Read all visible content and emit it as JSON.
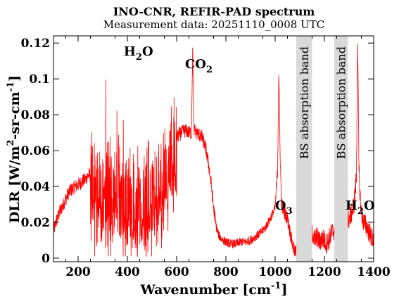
{
  "title": "INO-CNR, REFIR-PAD spectrum",
  "subtitle": "Measurement data: 20251110_0008 UTC",
  "chart_data": {
    "type": "line",
    "title": "INO-CNR, REFIR-PAD spectrum",
    "subtitle": "Measurement data: 20251110_0008 UTC",
    "xlabel": "Wavenumber [cm",
    "xlabel_sup": "-1",
    "xlabel_end": "]",
    "ylabel": "DLR [W/m",
    "ylabel_sup1": "2",
    "ylabel_mid": "-sr-cm",
    "ylabel_sup2": "-1",
    "ylabel_end": "]",
    "xlim": [
      100,
      1400
    ],
    "ylim": [
      -0.002,
      0.124
    ],
    "xticks": [
      200,
      400,
      600,
      800,
      1000,
      1200,
      1400
    ],
    "xtick_labels": [
      "200",
      "400",
      "600",
      "800",
      "1000",
      "1200",
      "1400"
    ],
    "yticks": [
      0,
      0.02,
      0.04,
      0.06,
      0.08,
      0.1,
      0.12
    ],
    "ytick_labels": [
      "0",
      "0.02",
      "0.04",
      "0.06",
      "0.08",
      "0.1",
      "0.12"
    ],
    "grid": false,
    "line_color": "#ff0000",
    "band_color": "#d9d9d9",
    "bands": [
      {
        "x": [
          1085,
          1150
        ],
        "label": "BS absorption band"
      },
      {
        "x": [
          1240,
          1295
        ],
        "label": "BS absorption band"
      }
    ],
    "annotations": [
      {
        "text": "H",
        "sub": "2",
        "text_end": "O",
        "x": 445,
        "y": 0.113
      },
      {
        "text": "CO",
        "sub": "2",
        "text_end": "",
        "x": 690,
        "y": 0.106
      },
      {
        "text": "O",
        "sub": "3",
        "text_end": "",
        "x": 1035,
        "y": 0.027
      },
      {
        "text": "H",
        "sub": "2",
        "text_end": "O",
        "x": 1345,
        "y": 0.027
      }
    ],
    "series": [
      {
        "x": [
          100,
          110,
          120,
          130,
          140,
          150,
          160,
          170,
          180,
          190,
          200,
          210,
          220,
          230,
          240,
          250,
          260,
          270,
          280,
          290,
          300,
          310,
          320,
          330,
          340,
          350,
          360,
          370,
          380,
          390,
          400,
          410,
          420,
          430,
          440,
          450,
          460,
          470,
          480,
          490,
          500,
          510,
          520,
          530,
          540,
          550,
          560,
          570,
          580,
          590,
          600,
          610,
          620,
          630,
          640,
          650,
          660,
          665,
          670,
          675,
          680,
          690,
          700,
          710,
          720,
          730,
          740,
          750,
          760,
          770,
          780,
          790,
          800,
          820,
          840,
          860,
          880,
          900,
          920,
          940,
          960,
          980,
          1000,
          1010,
          1015,
          1020,
          1025,
          1030,
          1040,
          1050,
          1060,
          1070,
          1080,
          1150,
          1160,
          1170,
          1180,
          1190,
          1200,
          1210,
          1220,
          1230,
          1240,
          1295,
          1300,
          1310,
          1320,
          1330,
          1335,
          1340,
          1345,
          1350,
          1360,
          1370,
          1380,
          1390,
          1400
        ],
        "y": [
          0.015,
          0.02,
          0.024,
          0.027,
          0.03,
          0.033,
          0.036,
          0.038,
          0.039,
          0.04,
          0.041,
          0.042,
          0.043,
          0.044,
          0.046,
          0.047,
          0.046,
          0.045,
          0.044,
          0.046,
          0.045,
          0.043,
          0.044,
          0.042,
          0.04,
          0.042,
          0.038,
          0.04,
          0.036,
          0.038,
          0.034,
          0.036,
          0.033,
          0.035,
          0.032,
          0.036,
          0.034,
          0.037,
          0.035,
          0.04,
          0.038,
          0.042,
          0.041,
          0.046,
          0.045,
          0.05,
          0.052,
          0.057,
          0.06,
          0.064,
          0.067,
          0.069,
          0.07,
          0.071,
          0.071,
          0.07,
          0.07,
          0.117,
          0.072,
          0.071,
          0.07,
          0.069,
          0.068,
          0.065,
          0.06,
          0.052,
          0.042,
          0.028,
          0.018,
          0.013,
          0.011,
          0.01,
          0.009,
          0.008,
          0.008,
          0.009,
          0.009,
          0.01,
          0.012,
          0.014,
          0.017,
          0.022,
          0.028,
          0.05,
          0.105,
          0.06,
          0.032,
          0.028,
          0.025,
          0.022,
          0.015,
          0.008,
          0.003,
          0.015,
          0.01,
          0.012,
          0.009,
          0.011,
          0.01,
          0.008,
          0.011,
          0.014,
          0.016,
          0.02,
          0.022,
          0.025,
          0.03,
          0.045,
          0.124,
          0.05,
          0.035,
          0.025,
          0.02,
          0.018,
          0.015,
          0.012,
          0.01
        ]
      }
    ]
  }
}
